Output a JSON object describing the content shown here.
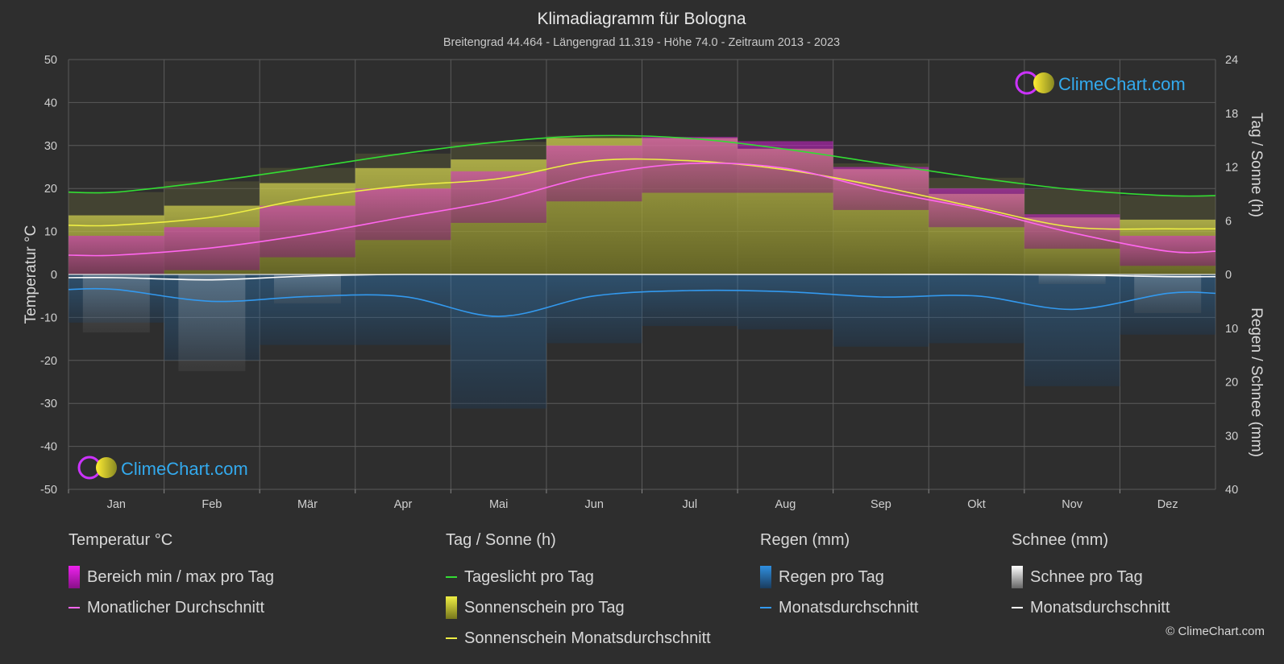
{
  "chart_data": {
    "type": "line",
    "title": "Klimadiagramm für Bologna",
    "subtitle": "Breitengrad 44.464 - Längengrad 11.319 - Höhe 74.0 - Zeitraum 2013 - 2023",
    "categories": [
      "Jan",
      "Feb",
      "Mär",
      "Apr",
      "Mai",
      "Jun",
      "Jul",
      "Aug",
      "Sep",
      "Okt",
      "Nov",
      "Dez"
    ],
    "y_left": {
      "label": "Temperatur °C",
      "min": -50,
      "max": 50,
      "ticks": [
        "50",
        "40",
        "30",
        "20",
        "10",
        "0",
        "-10",
        "-20",
        "-30",
        "-40",
        "-50"
      ]
    },
    "y_right_top": {
      "label": "Tag / Sonne (h)",
      "min": 0,
      "max": 24,
      "ticks": [
        "24",
        "18",
        "12",
        "6",
        "0"
      ]
    },
    "y_right_bottom": {
      "label": "Regen / Schnee (mm)",
      "min": 0,
      "max": 40,
      "ticks": [
        "10",
        "20",
        "30",
        "40"
      ]
    },
    "series": [
      {
        "name": "Tageslicht pro Tag",
        "color": "#33dd33",
        "unit": "h",
        "values": [
          9.2,
          10.4,
          11.9,
          13.5,
          14.8,
          15.5,
          15.2,
          14.0,
          12.4,
          10.8,
          9.5,
          8.8
        ]
      },
      {
        "name": "Sonnenschein Monatsdurchschnitt",
        "color": "#eeee44",
        "unit": "h",
        "values": [
          5.5,
          6.4,
          8.5,
          9.9,
          10.7,
          12.7,
          12.7,
          11.7,
          9.8,
          7.5,
          5.3,
          5.1
        ]
      },
      {
        "name": "Monatlicher Durchschnitt",
        "color": "#ff66ee",
        "unit": "°C",
        "values": [
          4.5,
          6.2,
          9.3,
          13.3,
          17.3,
          23.0,
          25.8,
          24.7,
          19.5,
          15.2,
          9.7,
          5.4
        ]
      },
      {
        "name": "Max Temperatur",
        "color": "#cc22cc",
        "unit": "°C",
        "values": [
          9,
          11,
          16,
          20,
          24,
          30,
          32,
          31,
          25,
          20,
          14,
          9
        ]
      },
      {
        "name": "Min Temperatur",
        "color": "#cc22cc",
        "unit": "°C",
        "values": [
          0,
          1,
          4,
          8,
          12,
          17,
          19,
          19,
          15,
          11,
          6,
          2
        ]
      },
      {
        "name": "Regen Monatsdurchschnitt",
        "color": "#3399ee",
        "unit": "mm",
        "values": [
          2.8,
          5.0,
          4.1,
          4.1,
          7.8,
          4.0,
          3.0,
          3.2,
          4.2,
          4.0,
          6.5,
          3.5
        ]
      },
      {
        "name": "Schnee Monatsdurchschnitt",
        "color": "#ffffff",
        "unit": "mm",
        "values": [
          0.6,
          1.0,
          0.3,
          0.0,
          0.0,
          0.0,
          0.0,
          0.0,
          0.0,
          0.0,
          0.1,
          0.4
        ]
      }
    ],
    "grid": true,
    "logo_text": "ClimeChart.com"
  },
  "legend": {
    "temp": {
      "head": "Temperatur °C",
      "items": [
        "Bereich min / max pro Tag",
        "Monatlicher Durchschnitt"
      ]
    },
    "sun": {
      "head": "Tag / Sonne (h)",
      "items": [
        "Tageslicht pro Tag",
        "Sonnenschein pro Tag",
        "Sonnenschein Monatsdurchschnitt"
      ]
    },
    "rain": {
      "head": "Regen (mm)",
      "items": [
        "Regen pro Tag",
        "Monatsdurchschnitt"
      ]
    },
    "snow": {
      "head": "Schnee (mm)",
      "items": [
        "Schnee pro Tag",
        "Monatsdurchschnitt"
      ]
    }
  },
  "colors": {
    "background": "#2e2e2e",
    "range": "#cc22cc",
    "temp_avg": "#ff66ee",
    "daylight": "#33dd33",
    "sunshine": "#eeee44",
    "rain": "#3399ee",
    "snow": "#ffffff"
  },
  "copyright": "© ClimeChart.com"
}
